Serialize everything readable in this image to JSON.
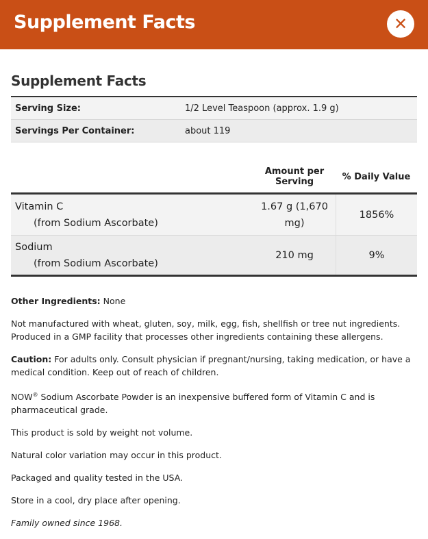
{
  "header": {
    "title": "Supplement Facts",
    "close_icon": "close-icon",
    "color": "#c94f16"
  },
  "facts": {
    "title": "Supplement Facts",
    "serving_size_label": "Serving Size:",
    "serving_size": "1/2 Level Teaspoon (approx. 1.9 g)",
    "servings_label": "Servings Per Container:",
    "servings": "about 119",
    "col_amount": "Amount per Serving",
    "col_dv": "% Daily Value",
    "rows": [
      {
        "name": "Vitamin C",
        "source": "(from Sodium Ascorbate)",
        "amount": "1.67 g (1,670 mg)",
        "dv": "1856%"
      },
      {
        "name": "Sodium",
        "source": "(from Sodium Ascorbate)",
        "amount": "210 mg",
        "dv": "9%"
      }
    ]
  },
  "notes": {
    "other_label": "Other Ingredients:",
    "other": " None",
    "allergen": "Not manufactured with wheat, gluten, soy, milk, egg, fish, shellfish or tree nut ingredients. Produced in a GMP facility that processes other ingredients containing these allergens.",
    "caution_label": "Caution:",
    "caution": " For adults only. Consult physician if pregnant/nursing, taking medication, or have a medical condition. Keep out of reach of children.",
    "now_brand": "NOW",
    "reg": "®",
    "now_text": " Sodium Ascorbate Powder is an inexpensive buffered form of Vitamin C and is pharmaceutical grade.",
    "weight": "This product is sold by weight not volume.",
    "color": "Natural color variation may occur in this product.",
    "usa": "Packaged and quality tested in the USA.",
    "store": "Store in a cool, dry place after opening.",
    "family": "Family owned since 1968."
  }
}
